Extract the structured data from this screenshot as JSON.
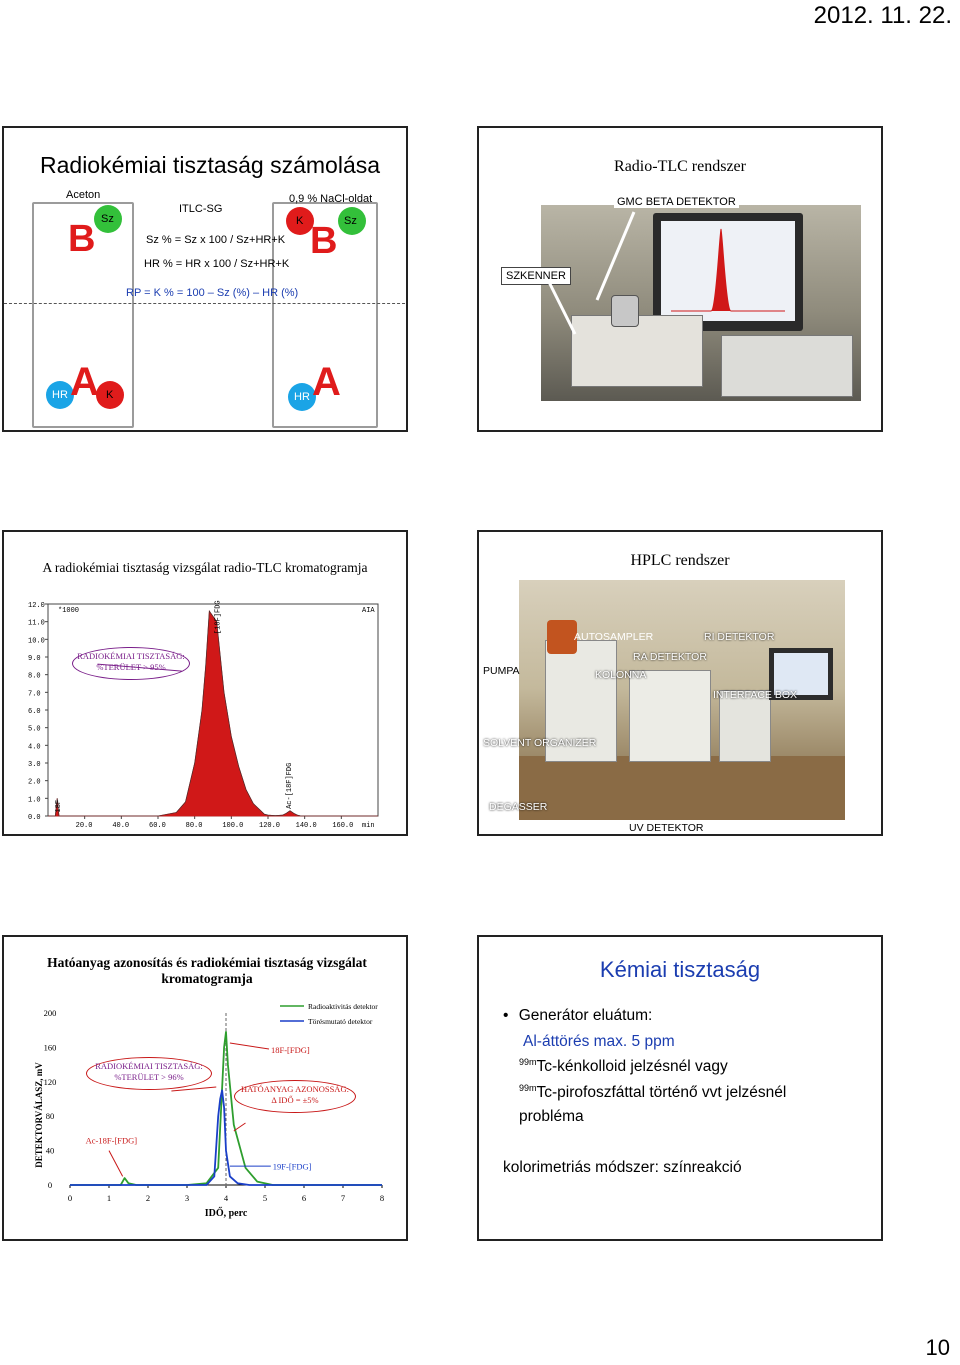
{
  "header": {
    "date": "2012. 11. 22."
  },
  "page_number": "10",
  "slide1": {
    "title": "Radiokémiai tisztaság számolása",
    "left_label": "Aceton",
    "right_label": "0,9 % NaCl-oldat",
    "center_label": "ITLC-SG",
    "sz_left": "Sz",
    "k_right": "K",
    "sz_right": "Sz",
    "formula1": "Sz % = Sz x 100 / Sz+HR+K",
    "formula2": "HR % = HR x 100 / Sz+HR+K",
    "formula3": "RP = K % = 100 – Sz (%) – HR (%)",
    "hr_left": "HR",
    "k_left": "K",
    "hr_right": "HR",
    "letter_b": "B",
    "letter_a": "A"
  },
  "slide2": {
    "title": "Radio-TLC rendszer",
    "label_detector": "GMC BETA DETEKTOR",
    "label_scanner": "SZKENNER"
  },
  "slide3": {
    "title": "A radiokémiai tisztaság vizsgálat radio-TLC kromatogramja",
    "annotation_line1": "RADIOKÉMIAI TISZTASÁG:",
    "annotation_line2": "%TERÜLET > 95%",
    "corner_left": "*1000",
    "corner_right": "AIA",
    "peak_label_main": "[18F]FDG",
    "peak_label_minor": "Ac-[18F]FDG",
    "peak_label_start": "18F",
    "x_unit": "min"
  },
  "chart_data": [
    {
      "type": "line",
      "title": "",
      "xlabel": "min",
      "ylabel": "",
      "x_ticks": [
        "20.0",
        "40.0",
        "60.0",
        "80.0",
        "100.0",
        "120.0",
        "140.0",
        "160.0"
      ],
      "y_ticks": [
        "0.0",
        "1.0",
        "2.0",
        "3.0",
        "4.0",
        "5.0",
        "6.0",
        "7.0",
        "8.0",
        "9.0",
        "10.0",
        "11.0",
        "12.0"
      ],
      "xlim": [
        0,
        180
      ],
      "ylim": [
        0,
        12
      ],
      "series": [
        {
          "name": "",
          "x": [
            0,
            4,
            5,
            6,
            10,
            40,
            60,
            70,
            75,
            80,
            84,
            86,
            88,
            92,
            96,
            100,
            104,
            108,
            112,
            116,
            118,
            120,
            124,
            128,
            130,
            132,
            134,
            136,
            138,
            140,
            180
          ],
          "y": [
            0,
            0,
            1.0,
            0,
            0,
            0,
            0,
            0.2,
            0.8,
            3.0,
            6.0,
            8.5,
            11.6,
            11.0,
            7.0,
            4.5,
            2.8,
            1.5,
            0.7,
            0.3,
            0.1,
            0.05,
            0.02,
            0.05,
            0.15,
            0.3,
            0.15,
            0.05,
            0,
            0,
            0
          ]
        }
      ]
    },
    {
      "type": "line",
      "title": "",
      "xlabel": "IDŐ, perc",
      "ylabel": "DETEKTORVÁLASZ, mV",
      "x_ticks": [
        "0",
        "1",
        "2",
        "3",
        "4",
        "5",
        "6",
        "7",
        "8"
      ],
      "y_ticks": [
        "0",
        "40",
        "80",
        "120",
        "160",
        "200"
      ],
      "xlim": [
        0,
        8
      ],
      "ylim": [
        0,
        200
      ],
      "legend_position": "top-right",
      "series": [
        {
          "name": "Radioaktivitás detektor",
          "x": [
            0,
            1.0,
            1.3,
            1.4,
            1.5,
            1.7,
            3.0,
            3.5,
            3.8,
            3.95,
            4.0,
            4.05,
            4.2,
            4.5,
            4.8,
            5.2,
            8
          ],
          "y": [
            0,
            0,
            0,
            8,
            2,
            0,
            0,
            2,
            20,
            160,
            178,
            140,
            70,
            20,
            4,
            0,
            0
          ]
        },
        {
          "name": "Törésmutató detektor",
          "x": [
            0,
            3.0,
            3.5,
            3.7,
            3.8,
            3.85,
            3.9,
            3.95,
            4.0,
            4.1,
            4.3,
            4.6,
            5.2,
            8
          ],
          "y": [
            0,
            0,
            0,
            10,
            80,
            100,
            110,
            90,
            40,
            10,
            2,
            0,
            0,
            0
          ]
        }
      ]
    }
  ],
  "slide4": {
    "title": "HPLC rendszer",
    "labels": {
      "pumpa": "PUMPA",
      "autosampler": "AUTOSAMPLER",
      "ri_detektor": "RI DETEKTOR",
      "ra_detektor": "RA DETEKTOR",
      "kolonna": "KOLONNA",
      "interface_box": "INTERFACE BOX",
      "solvent_organizer": "SOLVENT ORGANIZER",
      "degasser": "DEGASSER",
      "uv_detektor": "UV DETEKTOR"
    }
  },
  "slide5": {
    "title": "Hatóanyag azonosítás és radiokémiai tisztaság vizsgálat kromatogramja",
    "legend_radio": "Radioaktivitás detektor",
    "legend_ri": "Törésmutató detektor",
    "annot_purity_1": "RADIOKÉMIAI TISZTASÁG:",
    "annot_purity_2": "%TERÜLET > 96%",
    "annot_identity_1": "HATÓANYAG AZONOSSÁG:",
    "annot_identity_2": "Δ IDŐ = ±5%",
    "label_fdg_top": "18F-[FDG]",
    "label_fdg_bottom": "19F-[FDG]",
    "label_ac": "Ac-18F-[FDG]",
    "ylabel": "DETEKTORVÁLASZ, mV",
    "xlabel": "IDŐ, perc"
  },
  "slide6": {
    "title": "Kémiai tisztaság",
    "bullet1": "Generátor eluátum:",
    "line2": "Al-áttörés max. 5 ppm",
    "line3_sup": "99m",
    "line3": "Tc-kénkolloid jelzésnél vagy",
    "line4_sup": "99m",
    "line4": "Tc-pirofoszfáttal történő vvt jelzésnél",
    "line5": "probléma",
    "footer": "kolorimetriás módszer: színreakció"
  },
  "colors": {
    "peak_red": "#d01818",
    "curve_green": "#2e9e2e",
    "curve_blue": "#1a3fc8",
    "annotation_purple": "#7a1f8a",
    "annotation_red": "#c81818",
    "title_blue": "#1b3db0"
  }
}
